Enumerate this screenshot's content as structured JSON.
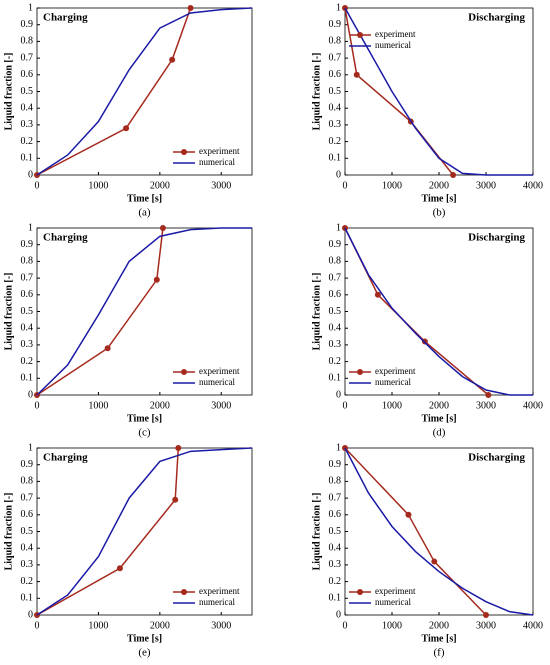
{
  "chart_data": [
    {
      "type": "line",
      "title": "Charging",
      "title_loc": "upper left",
      "caption": "(a)",
      "xlabel": "Time [s]",
      "ylabel": "Liquid fraction [-]",
      "xlim": [
        0,
        3500
      ],
      "xticks": [
        0,
        1000,
        2000,
        3000
      ],
      "ylim": [
        0,
        1
      ],
      "yticks": [
        0,
        0.1,
        0.2,
        0.3,
        0.4,
        0.5,
        0.6,
        0.7,
        0.8,
        0.9,
        1
      ],
      "legend_loc": "lower right",
      "series": [
        {
          "name": "experiment",
          "color": "#a52a1e",
          "marker": "o",
          "x": [
            0,
            1450,
            2200,
            2500
          ],
          "values": [
            0,
            0.28,
            0.69,
            1.0
          ]
        },
        {
          "name": "numerical",
          "color": "#1a1aa6",
          "x": [
            0,
            500,
            1000,
            1500,
            2000,
            2500,
            3000,
            3500
          ],
          "values": [
            0,
            0.12,
            0.32,
            0.63,
            0.88,
            0.97,
            0.99,
            1.0
          ]
        }
      ]
    },
    {
      "type": "line",
      "title": "Discharging",
      "title_loc": "upper right",
      "caption": "(b)",
      "xlabel": "Time [s]",
      "ylabel": "Liquid fraction [-]",
      "xlim": [
        0,
        4000
      ],
      "xticks": [
        0,
        1000,
        2000,
        3000,
        4000
      ],
      "ylim": [
        0,
        1
      ],
      "yticks": [
        0,
        0.1,
        0.2,
        0.3,
        0.4,
        0.5,
        0.6,
        0.7,
        0.8,
        0.9,
        1
      ],
      "legend_loc": "upper left",
      "series": [
        {
          "name": "experiment",
          "color": "#a52a1e",
          "marker": "o",
          "x": [
            0,
            250,
            1400,
            2300
          ],
          "values": [
            1,
            0.6,
            0.32,
            0
          ]
        },
        {
          "name": "numerical",
          "color": "#1a1aa6",
          "x": [
            0,
            500,
            1000,
            1500,
            2000,
            2500,
            3000,
            4000
          ],
          "values": [
            1,
            0.75,
            0.5,
            0.28,
            0.1,
            0.01,
            0,
            0
          ]
        }
      ]
    },
    {
      "type": "line",
      "title": "Charging",
      "title_loc": "upper left",
      "caption": "(c)",
      "xlabel": "Time [s]",
      "ylabel": "Liquid fraction [-]",
      "xlim": [
        0,
        3500
      ],
      "xticks": [
        0,
        1000,
        2000,
        3000
      ],
      "ylim": [
        0,
        1
      ],
      "yticks": [
        0,
        0.1,
        0.2,
        0.3,
        0.4,
        0.5,
        0.6,
        0.7,
        0.8,
        0.9,
        1
      ],
      "legend_loc": "lower right",
      "series": [
        {
          "name": "experiment",
          "color": "#a52a1e",
          "marker": "o",
          "x": [
            0,
            1150,
            1950,
            2050
          ],
          "values": [
            0,
            0.28,
            0.69,
            1.0
          ]
        },
        {
          "name": "numerical",
          "color": "#1a1aa6",
          "x": [
            0,
            500,
            1000,
            1500,
            2000,
            2500,
            3000,
            3500
          ],
          "values": [
            0,
            0.18,
            0.48,
            0.8,
            0.95,
            0.99,
            1.0,
            1.0
          ]
        }
      ]
    },
    {
      "type": "line",
      "title": "Discharging",
      "title_loc": "upper right",
      "caption": "(d)",
      "xlabel": "Time [s]",
      "ylabel": "Liquid fraction [-]",
      "xlim": [
        0,
        4000
      ],
      "xticks": [
        0,
        1000,
        2000,
        3000,
        4000
      ],
      "ylim": [
        0,
        1
      ],
      "yticks": [
        0,
        0.1,
        0.2,
        0.3,
        0.4,
        0.5,
        0.6,
        0.7,
        0.8,
        0.9,
        1
      ],
      "legend_loc": "lower left",
      "series": [
        {
          "name": "experiment",
          "color": "#a52a1e",
          "marker": "o",
          "x": [
            0,
            700,
            1700,
            3050
          ],
          "values": [
            1,
            0.6,
            0.32,
            0
          ]
        },
        {
          "name": "numerical",
          "color": "#1a1aa6",
          "x": [
            0,
            500,
            1000,
            1500,
            2000,
            2500,
            3000,
            3500,
            4000
          ],
          "values": [
            1,
            0.72,
            0.52,
            0.37,
            0.23,
            0.11,
            0.03,
            0,
            0
          ]
        }
      ]
    },
    {
      "type": "line",
      "title": "Charging",
      "title_loc": "upper left",
      "caption": "(e)",
      "xlabel": "Time [s]",
      "ylabel": "Liquid fraction [-]",
      "xlim": [
        0,
        3500
      ],
      "xticks": [
        0,
        1000,
        2000,
        3000
      ],
      "ylim": [
        0,
        1
      ],
      "yticks": [
        0,
        0.1,
        0.2,
        0.3,
        0.4,
        0.5,
        0.6,
        0.7,
        0.8,
        0.9,
        1
      ],
      "legend_loc": "lower right",
      "series": [
        {
          "name": "experiment",
          "color": "#a52a1e",
          "marker": "o",
          "x": [
            0,
            1350,
            2250,
            2300
          ],
          "values": [
            0,
            0.28,
            0.69,
            1.0
          ]
        },
        {
          "name": "numerical",
          "color": "#1a1aa6",
          "x": [
            0,
            500,
            1000,
            1500,
            2000,
            2500,
            3000,
            3500
          ],
          "values": [
            0,
            0.12,
            0.35,
            0.7,
            0.92,
            0.98,
            0.99,
            1.0
          ]
        }
      ]
    },
    {
      "type": "line",
      "title": "Discharging",
      "title_loc": "upper right",
      "caption": "(f)",
      "xlabel": "Time [s]",
      "ylabel": "Liquid fraction [-]",
      "xlim": [
        0,
        4000
      ],
      "xticks": [
        0,
        1000,
        2000,
        3000,
        4000
      ],
      "ylim": [
        0,
        1
      ],
      "yticks": [
        0,
        0.1,
        0.2,
        0.3,
        0.4,
        0.5,
        0.6,
        0.7,
        0.8,
        0.9,
        1
      ],
      "legend_loc": "lower left",
      "series": [
        {
          "name": "experiment",
          "color": "#a52a1e",
          "marker": "o",
          "x": [
            0,
            1350,
            1900,
            3000
          ],
          "values": [
            1,
            0.6,
            0.32,
            0
          ]
        },
        {
          "name": "numerical",
          "color": "#1a1aa6",
          "x": [
            0,
            500,
            1000,
            1500,
            2000,
            2500,
            3000,
            3500,
            4000
          ],
          "values": [
            1,
            0.73,
            0.53,
            0.38,
            0.26,
            0.16,
            0.08,
            0.02,
            0
          ]
        }
      ]
    }
  ]
}
